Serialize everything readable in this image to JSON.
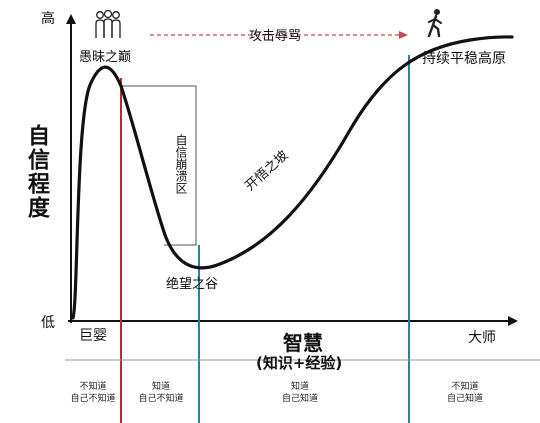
{
  "axis": {
    "y_high": "高",
    "y_low": "低",
    "y_label": "自信程度",
    "x_label_main": "智慧",
    "x_label_sub": "(知识+经验)",
    "x_start_label": "巨婴",
    "x_end_label": "大师"
  },
  "top_arrow_label": "攻击辱骂",
  "stages": {
    "peak": "愚昧之巅",
    "collapse": "自信崩溃区",
    "valley": "绝望之谷",
    "slope": "开悟之坡",
    "plateau": "持续平稳高原"
  },
  "bottom_columns": [
    {
      "line1": "不知道",
      "line2": "自己不知道"
    },
    {
      "line1": "知道",
      "line2": "自己不知道"
    },
    {
      "line1": "知道",
      "line2": "自己知道"
    },
    {
      "line1": "不知道",
      "line2": "自己知道"
    }
  ],
  "colors": {
    "curve": "#111111",
    "red_line": "#c0272d",
    "blue_line": "#2f7fa0",
    "arrow": "#c94a4a"
  },
  "icons": {
    "peak": "group-of-people-icon",
    "plateau": "walking-person-icon"
  }
}
